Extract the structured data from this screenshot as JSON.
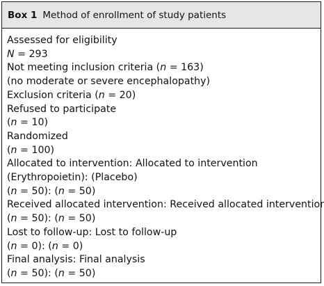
{
  "box": {
    "label": "Box 1",
    "title": "Method of enrollment of study patients"
  },
  "lines": [
    [
      {
        "t": "Assessed for eligibility"
      }
    ],
    [
      {
        "t": "N",
        "i": true
      },
      {
        "t": " = 293"
      }
    ],
    [
      {
        "t": "Not meeting inclusion criteria ("
      },
      {
        "t": "n",
        "i": true
      },
      {
        "t": " = 163)"
      }
    ],
    [
      {
        "t": "(no moderate or severe encephalopathy)"
      }
    ],
    [
      {
        "t": "Exclusion criteria ("
      },
      {
        "t": "n",
        "i": true
      },
      {
        "t": " = 20)"
      }
    ],
    [
      {
        "t": "Refused to participate"
      }
    ],
    [
      {
        "t": "("
      },
      {
        "t": "n",
        "i": true
      },
      {
        "t": " = 10)"
      }
    ],
    [
      {
        "t": "Randomized"
      }
    ],
    [
      {
        "t": "("
      },
      {
        "t": "n",
        "i": true
      },
      {
        "t": " = 100)"
      }
    ],
    [
      {
        "t": "Allocated to intervention: Allocated to intervention"
      }
    ],
    [
      {
        "t": "(Erythropoietin): (Placebo)"
      }
    ],
    [
      {
        "t": "("
      },
      {
        "t": "n",
        "i": true
      },
      {
        "t": " = 50): ("
      },
      {
        "t": "n",
        "i": true
      },
      {
        "t": " = 50)"
      }
    ],
    [
      {
        "t": "Received allocated intervention: Received allocated intervention"
      }
    ],
    [
      {
        "t": "("
      },
      {
        "t": "n",
        "i": true
      },
      {
        "t": " = 50): ("
      },
      {
        "t": "n",
        "i": true
      },
      {
        "t": " = 50)"
      }
    ],
    [
      {
        "t": "Lost to follow-up: Lost to follow-up"
      }
    ],
    [
      {
        "t": "("
      },
      {
        "t": "n",
        "i": true
      },
      {
        "t": " = 0): ("
      },
      {
        "t": "n",
        "i": true
      },
      {
        "t": " = 0)"
      }
    ],
    [
      {
        "t": "Final analysis: Final analysis"
      }
    ],
    [
      {
        "t": "("
      },
      {
        "t": "n",
        "i": true
      },
      {
        "t": " = 50): ("
      },
      {
        "t": "n",
        "i": true
      },
      {
        "t": " = 50)"
      }
    ]
  ]
}
